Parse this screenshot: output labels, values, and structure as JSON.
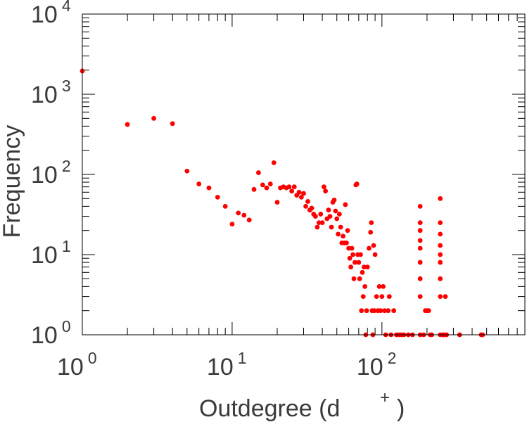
{
  "chart_data": {
    "type": "scatter",
    "xlabel": "Outdegree (d",
    "xlabel_superscript": "+",
    "xlabel_close": ")",
    "ylabel": "Frequency",
    "x_scale": "log",
    "y_scale": "log",
    "xlim": [
      1,
      900
    ],
    "ylim": [
      1,
      10000
    ],
    "x_ticks": [
      {
        "value": 1,
        "base": "10",
        "exp": "0"
      },
      {
        "value": 10,
        "base": "10",
        "exp": "1"
      },
      {
        "value": 100,
        "base": "10",
        "exp": "2"
      }
    ],
    "y_ticks": [
      {
        "value": 1,
        "base": "10",
        "exp": "0"
      },
      {
        "value": 10,
        "base": "10",
        "exp": "1"
      },
      {
        "value": 100,
        "base": "10",
        "exp": "2"
      },
      {
        "value": 1000,
        "base": "10",
        "exp": "3"
      },
      {
        "value": 10000,
        "base": "10",
        "exp": "4"
      }
    ],
    "grid": false,
    "marker_color": "#ff0000",
    "points": [
      [
        1,
        1950
      ],
      [
        2,
        420
      ],
      [
        3,
        500
      ],
      [
        4,
        430
      ],
      [
        5,
        110
      ],
      [
        6,
        76
      ],
      [
        7,
        68
      ],
      [
        8,
        52
      ],
      [
        9,
        40
      ],
      [
        10,
        24
      ],
      [
        11,
        33
      ],
      [
        12,
        31
      ],
      [
        13,
        27
      ],
      [
        14,
        65
      ],
      [
        15,
        105
      ],
      [
        16,
        74
      ],
      [
        17,
        68
      ],
      [
        18,
        76
      ],
      [
        19,
        140
      ],
      [
        20,
        45
      ],
      [
        21,
        68
      ],
      [
        22,
        70
      ],
      [
        23,
        68
      ],
      [
        24,
        70
      ],
      [
        25,
        62
      ],
      [
        26,
        70
      ],
      [
        27,
        55
      ],
      [
        28,
        60
      ],
      [
        29,
        52
      ],
      [
        30,
        58
      ],
      [
        31,
        40
      ],
      [
        32,
        46
      ],
      [
        33,
        36
      ],
      [
        34,
        38
      ],
      [
        35,
        32
      ],
      [
        36,
        30
      ],
      [
        37,
        22
      ],
      [
        38,
        25
      ],
      [
        39,
        32
      ],
      [
        40,
        25
      ],
      [
        41,
        70
      ],
      [
        42,
        62
      ],
      [
        43,
        28
      ],
      [
        44,
        36
      ],
      [
        45,
        30
      ],
      [
        46,
        22
      ],
      [
        47,
        45
      ],
      [
        48,
        48
      ],
      [
        49,
        35
      ],
      [
        50,
        28
      ],
      [
        51,
        18
      ],
      [
        52,
        32
      ],
      [
        53,
        22
      ],
      [
        54,
        14
      ],
      [
        55,
        17
      ],
      [
        56,
        14
      ],
      [
        57,
        42
      ],
      [
        58,
        14
      ],
      [
        59,
        20
      ],
      [
        60,
        12
      ],
      [
        61,
        9
      ],
      [
        62,
        7
      ],
      [
        63,
        12
      ],
      [
        64,
        10
      ],
      [
        65,
        5
      ],
      [
        66,
        8
      ],
      [
        67,
        74
      ],
      [
        68,
        76
      ],
      [
        69,
        10
      ],
      [
        70,
        8
      ],
      [
        71,
        5
      ],
      [
        72,
        10
      ],
      [
        73,
        2
      ],
      [
        74,
        6
      ],
      [
        75,
        3
      ],
      [
        76,
        7
      ],
      [
        77,
        4
      ],
      [
        78,
        1
      ],
      [
        79,
        2
      ],
      [
        80,
        7
      ],
      [
        82,
        12
      ],
      [
        84,
        19
      ],
      [
        85,
        25
      ],
      [
        86,
        2
      ],
      [
        87,
        1
      ],
      [
        88,
        13
      ],
      [
        89,
        2
      ],
      [
        90,
        10
      ],
      [
        92,
        3
      ],
      [
        94,
        2
      ],
      [
        96,
        4
      ],
      [
        98,
        2
      ],
      [
        100,
        3
      ],
      [
        102,
        4
      ],
      [
        104,
        2
      ],
      [
        106,
        1
      ],
      [
        110,
        2
      ],
      [
        112,
        3
      ],
      [
        115,
        1
      ],
      [
        120,
        2
      ],
      [
        125,
        1
      ],
      [
        130,
        1
      ],
      [
        135,
        1
      ],
      [
        140,
        1
      ],
      [
        150,
        1
      ],
      [
        160,
        1
      ],
      [
        180,
        40
      ],
      [
        180,
        25
      ],
      [
        180,
        20
      ],
      [
        180,
        15
      ],
      [
        180,
        12
      ],
      [
        180,
        8
      ],
      [
        180,
        5
      ],
      [
        180,
        3
      ],
      [
        180,
        1
      ],
      [
        190,
        1
      ],
      [
        195,
        2
      ],
      [
        200,
        2
      ],
      [
        205,
        2
      ],
      [
        210,
        1
      ],
      [
        215,
        1
      ],
      [
        245,
        50
      ],
      [
        245,
        25
      ],
      [
        245,
        18
      ],
      [
        245,
        13
      ],
      [
        245,
        10
      ],
      [
        245,
        8
      ],
      [
        245,
        5
      ],
      [
        245,
        3
      ],
      [
        245,
        1
      ],
      [
        255,
        1
      ],
      [
        260,
        1
      ],
      [
        265,
        3
      ],
      [
        270,
        1
      ],
      [
        330,
        1
      ],
      [
        460,
        1
      ],
      [
        470,
        1
      ]
    ]
  }
}
